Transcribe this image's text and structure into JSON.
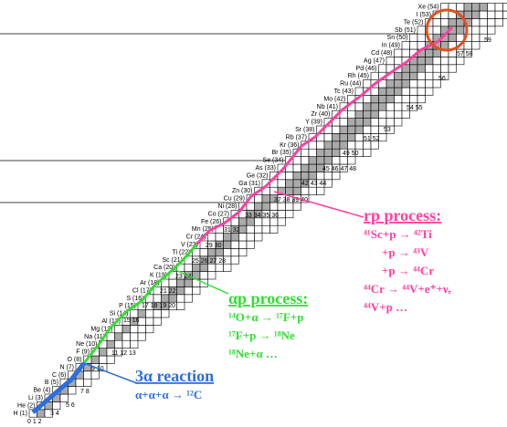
{
  "elements": [
    "H (1)",
    "He (2)",
    "Li (3)",
    "Be (4)",
    "B (5)",
    "C (6)",
    "N (7)",
    "O (8)",
    "F (9)",
    "Ne (10)",
    "Na (11)",
    "Mg (12)",
    "Al (13)",
    "Si (14)",
    "P (15)",
    "S (16)",
    "Cl (17)",
    "Ar (18)",
    "K (19)",
    "Ca (20)",
    "Sc (21)",
    "Ti (22)",
    "V (23)",
    "Cr (24)",
    "Mn (25)",
    "Fe (26)",
    "Co (27)",
    "Ni (28)",
    "Cu (29)",
    "Zn (30)",
    "Ga (31)",
    "Ge (32)",
    "As (33)",
    "Se (34)",
    "Br (35)",
    "Kr (36)",
    "Rb (37)",
    "Sr (38)",
    "Y (39)",
    "Zr (40)",
    "Nb (41)",
    "Mo (42)",
    "Tc (43)",
    "Ru (44)",
    "Rh (45)",
    "Pd (46)",
    "Ag (47)",
    "Cd (48)",
    "In (49)",
    "Sn (50)",
    "Sb (51)",
    "Te (52)",
    "I (53)",
    "Xe (54)"
  ],
  "neutron_numbers": [
    "0 1 2",
    "3 4",
    "5 6",
    "7 8",
    "9 10",
    "11 12 13",
    "15 16",
    "17 18 19 20",
    "21 22",
    "23 24",
    "25 26 27 28",
    "29 30",
    "31 32",
    "33 34 35 36",
    "37 38 39 40",
    "42 43 44",
    "45 46 47 48",
    "49 50",
    "51 52",
    "53",
    "54 55",
    "56",
    "57 58",
    "59"
  ],
  "rp_process": {
    "title": "rp process:",
    "lines": [
      "⁴¹Sc+p → ⁴²Ti",
      "+p → ⁴³V",
      "+p → ⁴⁴Cr",
      "⁴⁴Cr → ⁴⁴V+e⁺+νₑ",
      "⁴⁴V+p …"
    ]
  },
  "ap_process": {
    "title": "αp process:",
    "lines": [
      "¹⁴O+α → ¹⁷F+p",
      "¹⁷F+p → ¹⁸Ne",
      "¹⁸Ne+α …"
    ]
  },
  "triple_alpha": {
    "title": "3α reaction",
    "lines": [
      "α+α+α → ¹²C"
    ]
  }
}
